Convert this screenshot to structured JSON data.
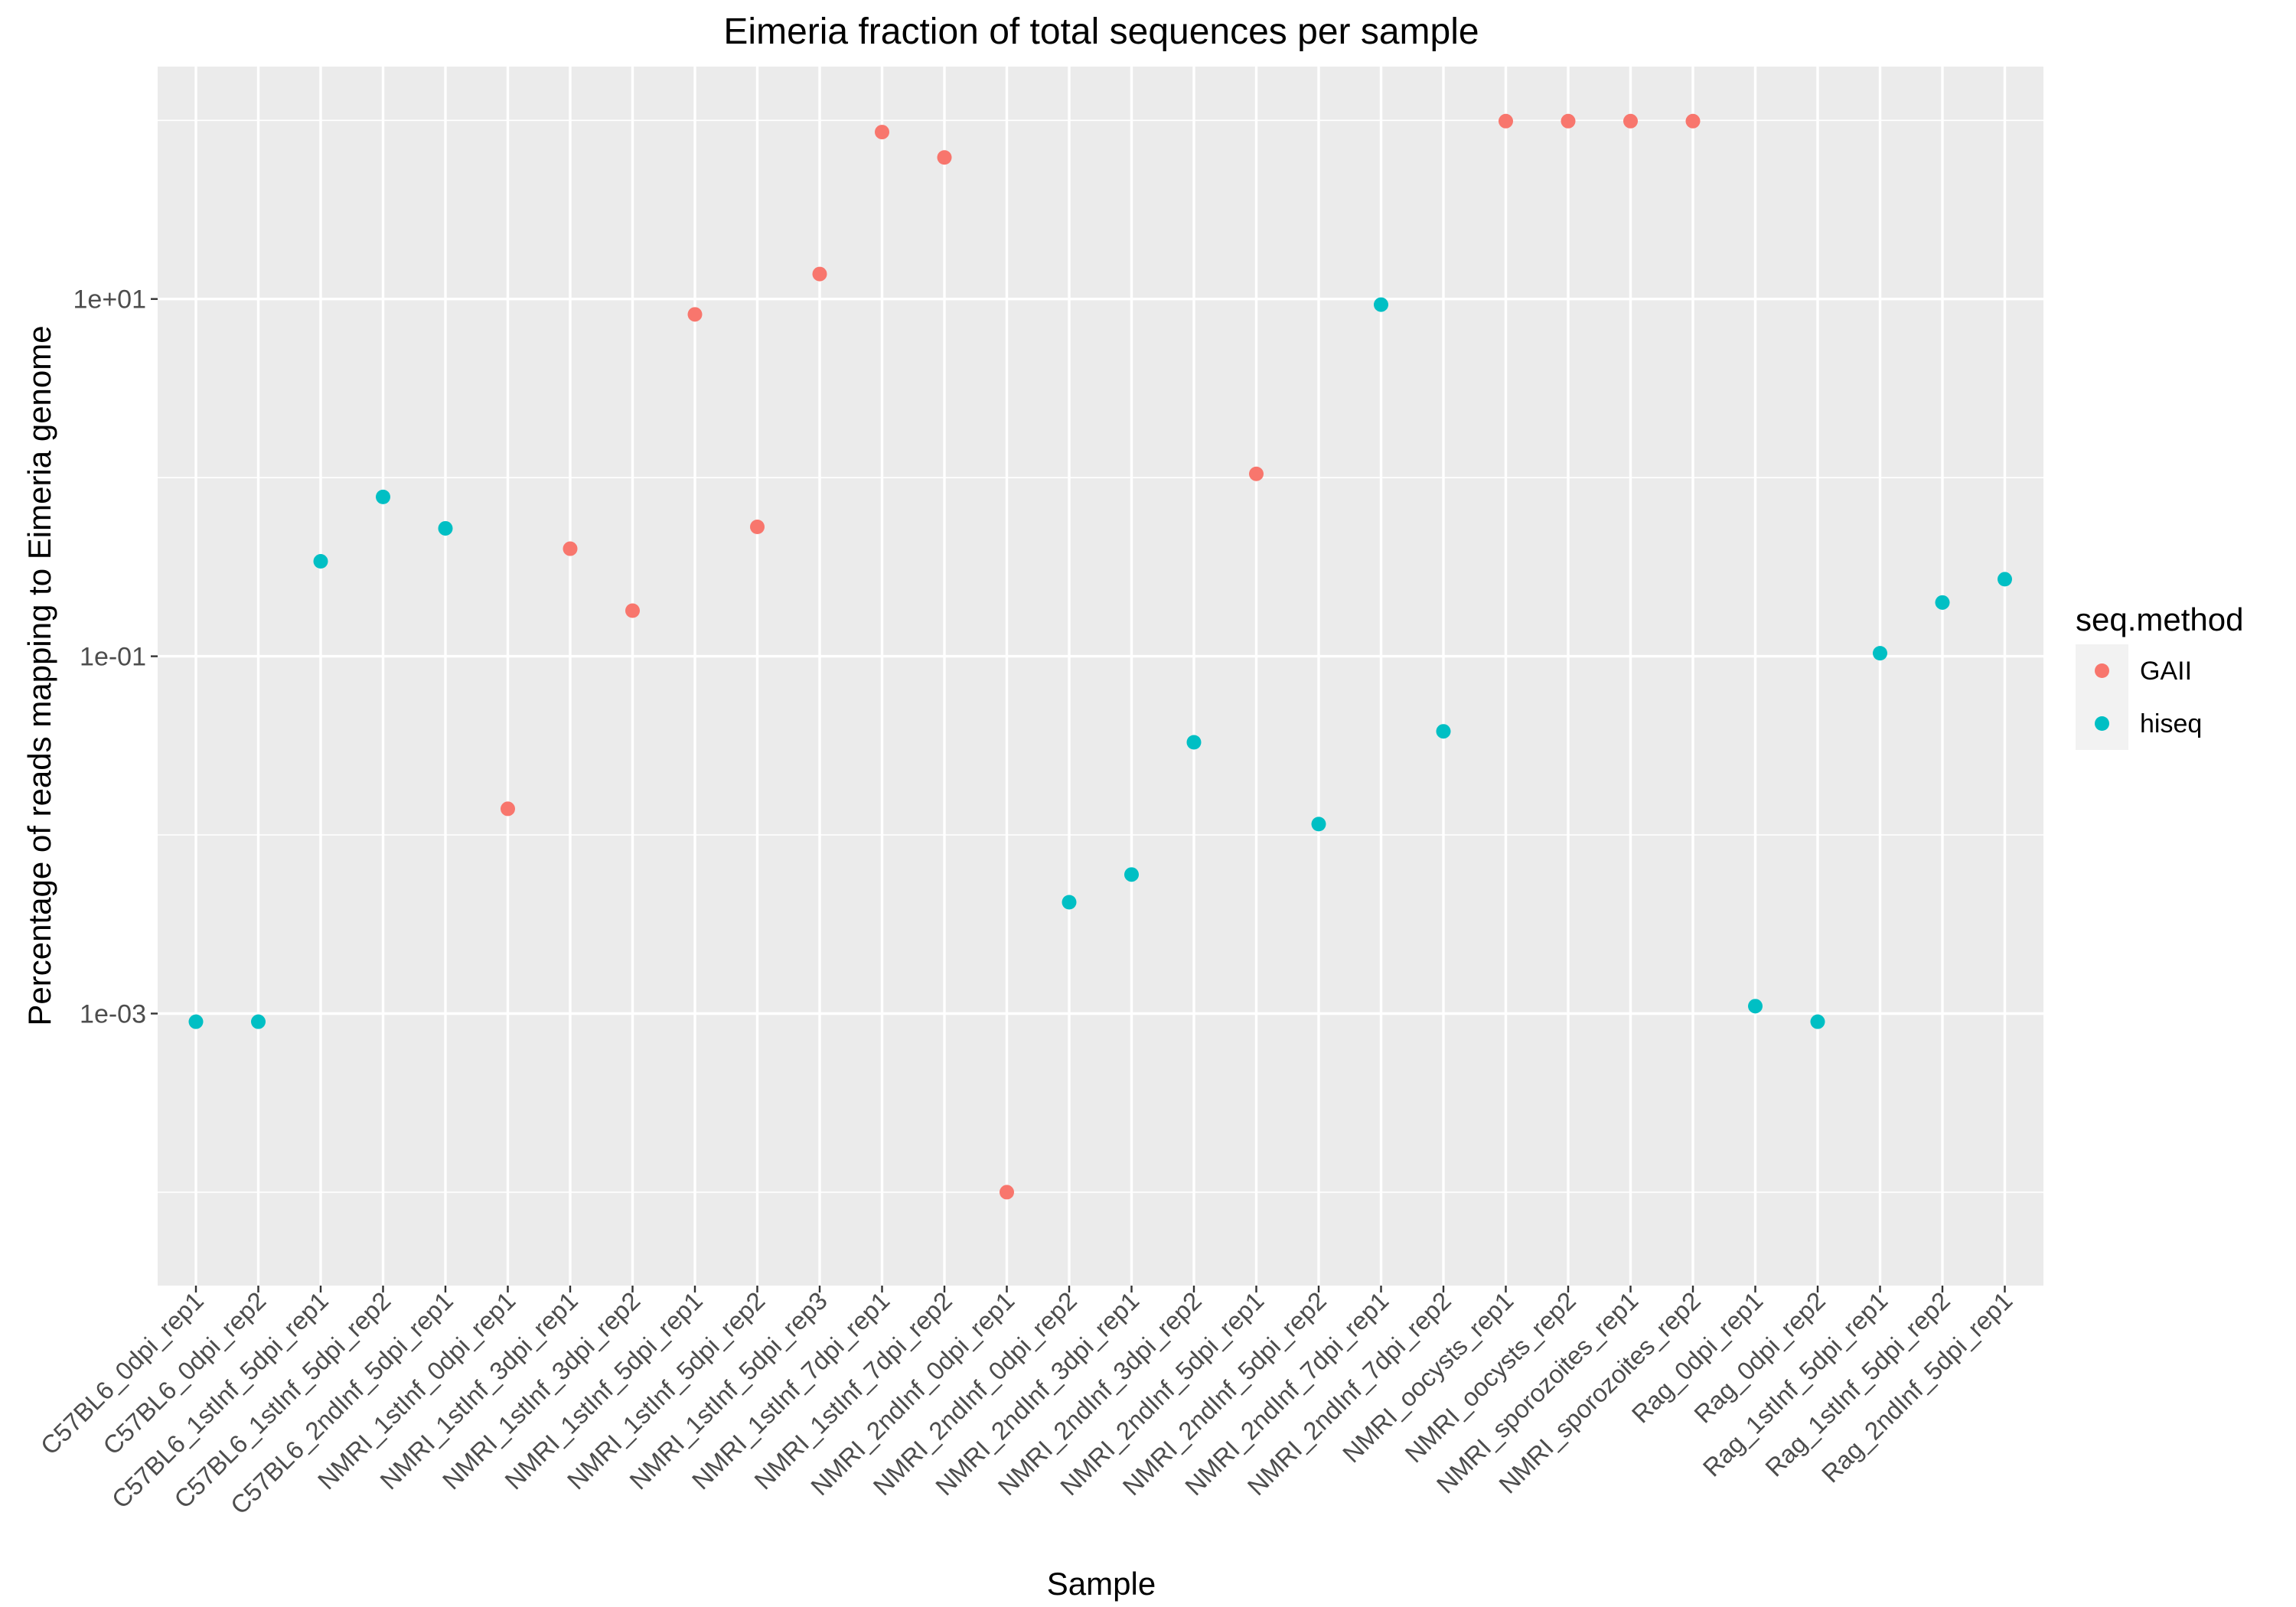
{
  "chart_data": {
    "type": "scatter",
    "title": "Eimeria fraction of total sequences per sample",
    "xlabel": "Sample",
    "ylabel": "Percentage of reads mapping to Eimeria genome",
    "y_scale": "log10",
    "ylim": [
      3e-05,
      200
    ],
    "y_ticks": [
      {
        "value": 0.001,
        "label": "1e-03"
      },
      {
        "value": 0.1,
        "label": "1e-01"
      },
      {
        "value": 10,
        "label": "1e+01"
      }
    ],
    "y_minor_ticks": [
      0.0001,
      0.01,
      1,
      100
    ],
    "grid": true,
    "legend": {
      "title": "seq.method",
      "placement": "right",
      "entries": [
        {
          "label": "GAII",
          "color": "#F8766D"
        },
        {
          "label": "hiseq",
          "color": "#00BFC4"
        }
      ]
    },
    "colors": {
      "panel": "#EBEBEB",
      "grid": "#FFFFFF",
      "text": "#000000",
      "tick_text": "#4D4D4D",
      "tick": "#333333"
    },
    "categories": [
      "C57BL6_0dpi_rep1",
      "C57BL6_0dpi_rep2",
      "C57BL6_1stInf_5dpi_rep1",
      "C57BL6_1stInf_5dpi_rep2",
      "C57BL6_2ndInf_5dpi_rep1",
      "NMRI_1stInf_0dpi_rep1",
      "NMRI_1stInf_3dpi_rep1",
      "NMRI_1stInf_3dpi_rep2",
      "NMRI_1stInf_5dpi_rep1",
      "NMRI_1stInf_5dpi_rep2",
      "NMRI_1stInf_5dpi_rep3",
      "NMRI_1stInf_7dpi_rep1",
      "NMRI_1stInf_7dpi_rep2",
      "NMRI_2ndInf_0dpi_rep1",
      "NMRI_2ndInf_0dpi_rep2",
      "NMRI_2ndInf_3dpi_rep1",
      "NMRI_2ndInf_3dpi_rep2",
      "NMRI_2ndInf_5dpi_rep1",
      "NMRI_2ndInf_5dpi_rep2",
      "NMRI_2ndInf_7dpi_rep1",
      "NMRI_2ndInf_7dpi_rep2",
      "NMRI_oocysts_rep1",
      "NMRI_oocysts_rep2",
      "NMRI_sporozoites_rep1",
      "NMRI_sporozoites_rep2",
      "Rag_0dpi_rep1",
      "Rag_0dpi_rep2",
      "Rag_1stInf_5dpi_rep1",
      "Rag_1stInf_5dpi_rep2",
      "Rag_2ndInf_5dpi_rep1"
    ],
    "points": [
      {
        "x": "C57BL6_0dpi_rep1",
        "y": 0.0009,
        "method": "hiseq"
      },
      {
        "x": "C57BL6_0dpi_rep2",
        "y": 0.0009,
        "method": "hiseq"
      },
      {
        "x": "C57BL6_1stInf_5dpi_rep1",
        "y": 0.34,
        "method": "hiseq"
      },
      {
        "x": "C57BL6_1stInf_5dpi_rep2",
        "y": 0.78,
        "method": "hiseq"
      },
      {
        "x": "C57BL6_2ndInf_5dpi_rep1",
        "y": 0.52,
        "method": "hiseq"
      },
      {
        "x": "NMRI_1stInf_0dpi_rep1",
        "y": 0.014,
        "method": "GAII"
      },
      {
        "x": "NMRI_1stInf_3dpi_rep1",
        "y": 0.4,
        "method": "GAII"
      },
      {
        "x": "NMRI_1stInf_3dpi_rep2",
        "y": 0.18,
        "method": "GAII"
      },
      {
        "x": "NMRI_1stInf_5dpi_rep1",
        "y": 8.2,
        "method": "GAII"
      },
      {
        "x": "NMRI_1stInf_5dpi_rep2",
        "y": 0.53,
        "method": "GAII"
      },
      {
        "x": "NMRI_1stInf_5dpi_rep3",
        "y": 13.8,
        "method": "GAII"
      },
      {
        "x": "NMRI_1stInf_7dpi_rep1",
        "y": 86,
        "method": "GAII"
      },
      {
        "x": "NMRI_1stInf_7dpi_rep2",
        "y": 62,
        "method": "GAII"
      },
      {
        "x": "NMRI_2ndInf_0dpi_rep1",
        "y": 0.0001,
        "method": "GAII"
      },
      {
        "x": "NMRI_2ndInf_0dpi_rep2",
        "y": 0.0042,
        "method": "hiseq"
      },
      {
        "x": "NMRI_2ndInf_3dpi_rep1",
        "y": 0.006,
        "method": "hiseq"
      },
      {
        "x": "NMRI_2ndInf_3dpi_rep2",
        "y": 0.033,
        "method": "hiseq"
      },
      {
        "x": "NMRI_2ndInf_5dpi_rep1",
        "y": 1.05,
        "method": "GAII"
      },
      {
        "x": "NMRI_2ndInf_5dpi_rep2",
        "y": 0.0115,
        "method": "hiseq"
      },
      {
        "x": "NMRI_2ndInf_7dpi_rep1",
        "y": 9.3,
        "method": "hiseq"
      },
      {
        "x": "NMRI_2ndInf_7dpi_rep2",
        "y": 0.038,
        "method": "hiseq"
      },
      {
        "x": "NMRI_oocysts_rep1",
        "y": 99,
        "method": "GAII"
      },
      {
        "x": "NMRI_oocysts_rep2",
        "y": 99,
        "method": "GAII"
      },
      {
        "x": "NMRI_sporozoites_rep1",
        "y": 99,
        "method": "GAII"
      },
      {
        "x": "NMRI_sporozoites_rep2",
        "y": 99,
        "method": "GAII"
      },
      {
        "x": "Rag_0dpi_rep1",
        "y": 0.0011,
        "method": "hiseq"
      },
      {
        "x": "Rag_0dpi_rep2",
        "y": 0.0009,
        "method": "hiseq"
      },
      {
        "x": "Rag_1stInf_5dpi_rep1",
        "y": 0.104,
        "method": "hiseq"
      },
      {
        "x": "Rag_1stInf_5dpi_rep2",
        "y": 0.2,
        "method": "hiseq"
      },
      {
        "x": "Rag_2ndInf_5dpi_rep1",
        "y": 0.27,
        "method": "hiseq"
      }
    ]
  }
}
